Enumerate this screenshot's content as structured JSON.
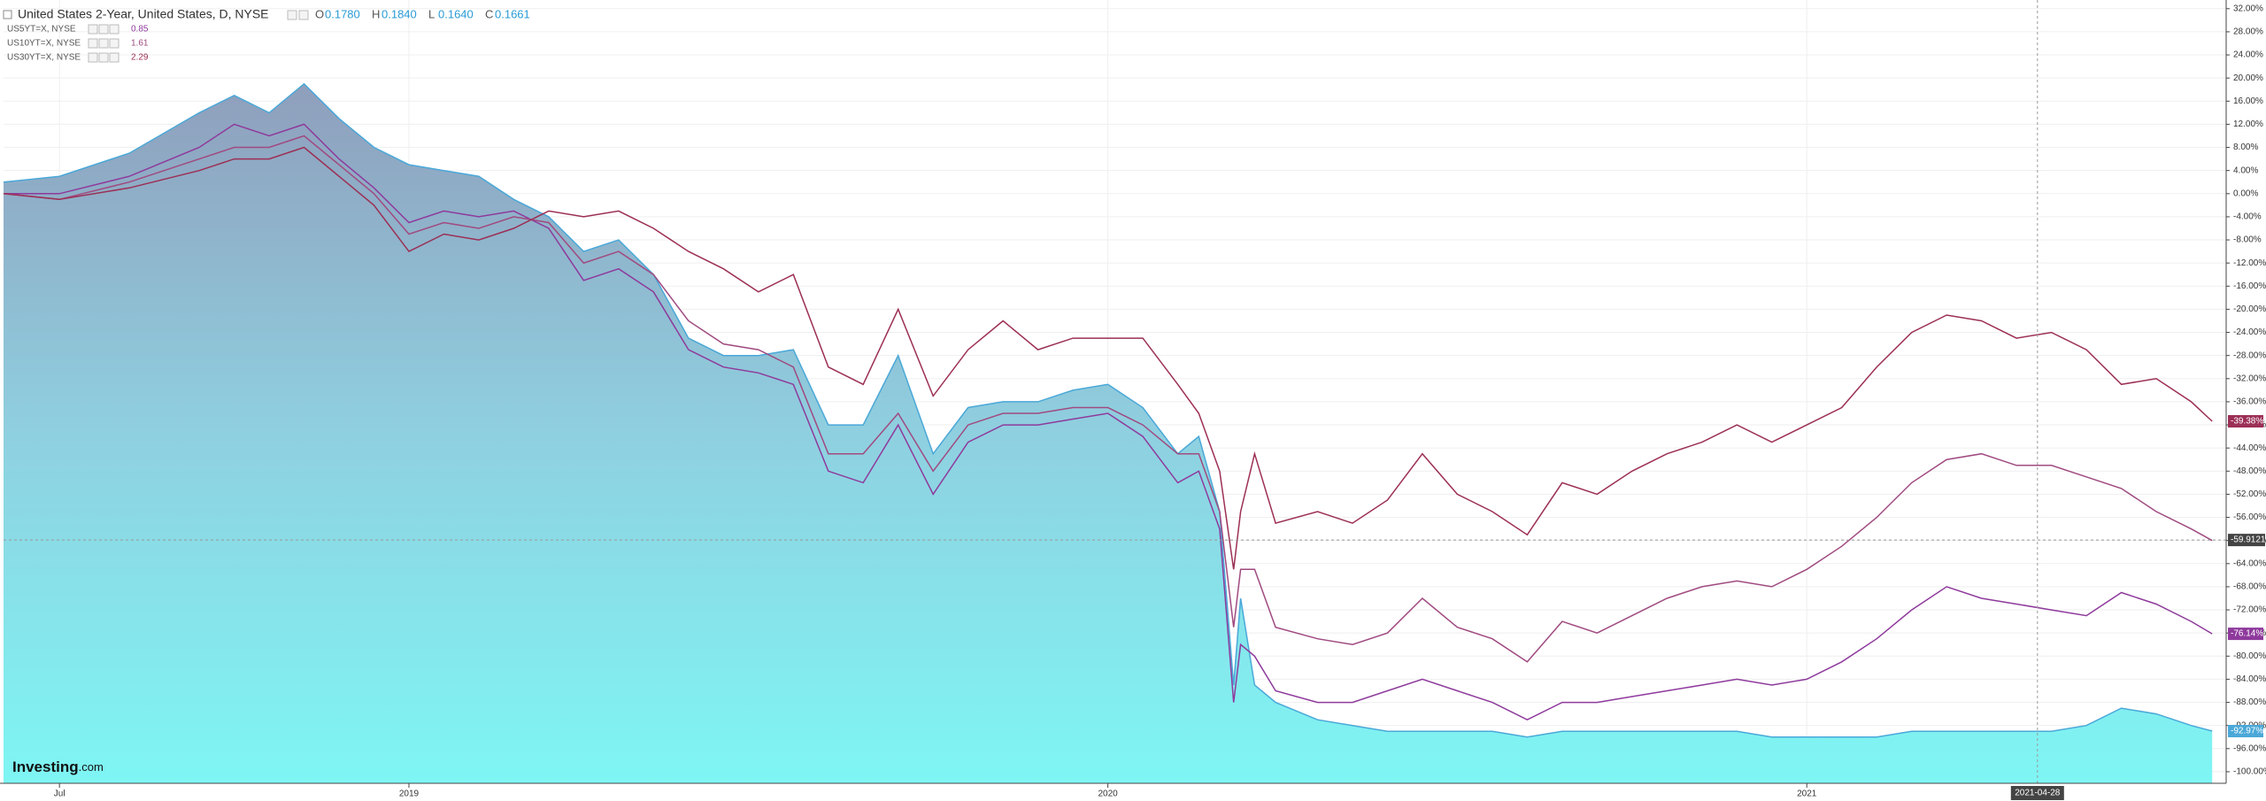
{
  "chart_data": {
    "type": "line",
    "title": "United States 2-Year, United States, D, NYSE",
    "ohlc": [
      {
        "key": "O",
        "text": "0.1780"
      },
      {
        "key": "H",
        "text": "0.1840"
      },
      {
        "key": "L",
        "text": "0.1640"
      },
      {
        "key": "C",
        "text": "0.1661"
      }
    ],
    "logo": [
      "Investing",
      ".com"
    ],
    "x": [
      2018.42,
      2018.5,
      2018.6,
      2018.7,
      2018.75,
      2018.8,
      2018.85,
      2018.9,
      2018.95,
      2019.0,
      2019.05,
      2019.1,
      2019.15,
      2019.2,
      2019.25,
      2019.3,
      2019.35,
      2019.4,
      2019.45,
      2019.5,
      2019.55,
      2019.6,
      2019.65,
      2019.7,
      2019.75,
      2019.8,
      2019.85,
      2019.9,
      2019.95,
      2020.0,
      2020.05,
      2020.1,
      2020.13,
      2020.16,
      2020.18,
      2020.19,
      2020.21,
      2020.24,
      2020.3,
      2020.35,
      2020.4,
      2020.45,
      2020.5,
      2020.55,
      2020.6,
      2020.65,
      2020.7,
      2020.75,
      2020.8,
      2020.85,
      2020.9,
      2020.95,
      2021.0,
      2021.05,
      2021.1,
      2021.15,
      2021.2,
      2021.25,
      2021.3,
      2021.35,
      2021.4,
      2021.45,
      2021.5,
      2021.55,
      2021.58
    ],
    "series": [
      {
        "name": "United States 2-Year, United States, D, NYSE",
        "color": "#4aa8d8",
        "fill": true,
        "last_label": "-92.97%",
        "values": [
          2,
          3,
          7,
          14,
          17,
          14,
          19,
          13,
          8,
          5,
          4,
          3,
          -1,
          -4,
          -10,
          -8,
          -14,
          -25,
          -28,
          -28,
          -27,
          -40,
          -40,
          -28,
          -45,
          -37,
          -36,
          -36,
          -34,
          -33,
          -37,
          -45,
          -42,
          -55,
          -85,
          -70,
          -85,
          -88,
          -91,
          -92,
          -93,
          -93,
          -93,
          -93,
          -94,
          -93,
          -93,
          -93,
          -93,
          -93,
          -93,
          -94,
          -94,
          -94,
          -94,
          -93,
          -93,
          -93,
          -93,
          -93,
          -92,
          -89,
          -90,
          -92,
          -92.97
        ]
      },
      {
        "name": "US5YT=X, NYSE",
        "color": "#8e3a9c",
        "quote": 0.85,
        "last_label": "-76.14%",
        "values": [
          0,
          0,
          3,
          8,
          12,
          10,
          12,
          6,
          1,
          -5,
          -3,
          -4,
          -3,
          -6,
          -15,
          -13,
          -17,
          -27,
          -30,
          -31,
          -33,
          -48,
          -50,
          -40,
          -52,
          -43,
          -40,
          -40,
          -39,
          -38,
          -42,
          -50,
          -48,
          -58,
          -88,
          -78,
          -80,
          -86,
          -88,
          -88,
          -86,
          -84,
          -86,
          -88,
          -91,
          -88,
          -88,
          -87,
          -86,
          -85,
          -84,
          -85,
          -84,
          -81,
          -77,
          -72,
          -68,
          -70,
          -71,
          -72,
          -73,
          -69,
          -71,
          -74,
          -76.14
        ]
      },
      {
        "name": "US10YT=X, NYSE",
        "color": "#a04a80",
        "quote": 1.61,
        "values": [
          0,
          -1,
          2,
          6,
          8,
          8,
          10,
          5,
          0,
          -7,
          -5,
          -6,
          -4,
          -5,
          -12,
          -10,
          -14,
          -22,
          -26,
          -27,
          -30,
          -45,
          -45,
          -38,
          -48,
          -40,
          -38,
          -38,
          -37,
          -37,
          -40,
          -45,
          -45,
          -55,
          -75,
          -65,
          -65,
          -75,
          -77,
          -78,
          -76,
          -70,
          -75,
          -77,
          -81,
          -74,
          -76,
          -73,
          -70,
          -68,
          -67,
          -68,
          -65,
          -61,
          -56,
          -50,
          -46,
          -45,
          -47,
          -47,
          -49,
          -51,
          -55,
          -58,
          -60
        ]
      },
      {
        "name": "US30YT=X, NYSE",
        "color": "#9c2f55",
        "quote": 2.29,
        "last_label": "-39.38%",
        "values": [
          0,
          -1,
          1,
          4,
          6,
          6,
          8,
          3,
          -2,
          -10,
          -7,
          -8,
          -6,
          -3,
          -4,
          -3,
          -6,
          -10,
          -13,
          -17,
          -14,
          -30,
          -33,
          -20,
          -35,
          -27,
          -22,
          -27,
          -25,
          -25,
          -25,
          -33,
          -38,
          -48,
          -65,
          -55,
          -45,
          -57,
          -55,
          -57,
          -53,
          -45,
          -52,
          -55,
          -59,
          -50,
          -52,
          -48,
          -45,
          -43,
          -40,
          -43,
          -40,
          -37,
          -30,
          -24,
          -21,
          -22,
          -25,
          -24,
          -27,
          -33,
          -32,
          -36,
          -39.38
        ]
      }
    ],
    "crosshair": {
      "x": 2021.33,
      "x_label": "2021-04-28",
      "y": -59.9121
    },
    "xlim": [
      2018.42,
      2021.6
    ],
    "xticks": [
      {
        "value": 2018.5,
        "label": "Jul"
      },
      2019,
      2020,
      2021
    ],
    "ylim": [
      -102,
      33.5
    ],
    "yticks": [
      {
        "value": 32,
        "label": "32.00%"
      },
      {
        "value": 28,
        "label": "28.00%"
      },
      {
        "value": 24,
        "label": "24.00%"
      },
      {
        "value": 20,
        "label": "20.00%"
      },
      {
        "value": 16,
        "label": "16.00%"
      },
      {
        "value": 12,
        "label": "12.00%"
      },
      {
        "value": 8,
        "label": "8.00%"
      },
      {
        "value": 4,
        "label": "4.00%"
      },
      {
        "value": 0,
        "label": "0.00%"
      },
      {
        "value": -4,
        "label": "-4.00%"
      },
      {
        "value": -8,
        "label": "-8.00%"
      },
      {
        "value": -12,
        "label": "-12.00%"
      },
      {
        "value": -16,
        "label": "-16.00%"
      },
      {
        "value": -20,
        "label": "-20.00%"
      },
      {
        "value": -24,
        "label": "-24.00%"
      },
      {
        "value": -28,
        "label": "-28.00%"
      },
      {
        "value": -32,
        "label": "-32.00%"
      },
      {
        "value": -36,
        "label": "-36.00%"
      },
      {
        "value": -40,
        "label": "-40.00%"
      },
      {
        "value": -44,
        "label": "-44.00%"
      },
      {
        "value": -48,
        "label": "-48.00%"
      },
      {
        "value": -52,
        "label": "-52.00%"
      },
      {
        "value": -56,
        "label": "-56.00%"
      },
      {
        "value": -60,
        "label": "-60.00%"
      },
      {
        "value": -64,
        "label": "-64.00%"
      },
      {
        "value": -68,
        "label": "-68.00%"
      },
      {
        "value": -72,
        "label": "-72.00%"
      },
      {
        "value": -76,
        "label": "-76.00%"
      },
      {
        "value": -80,
        "label": "-80.00%"
      },
      {
        "value": -84,
        "label": "-84.00%"
      },
      {
        "value": -88,
        "label": "-88.00%"
      },
      {
        "value": -92,
        "label": "-92.00%"
      },
      {
        "value": -96,
        "label": "-96.00%"
      },
      {
        "value": -100,
        "label": "-100.00%"
      }
    ],
    "grid": true
  }
}
